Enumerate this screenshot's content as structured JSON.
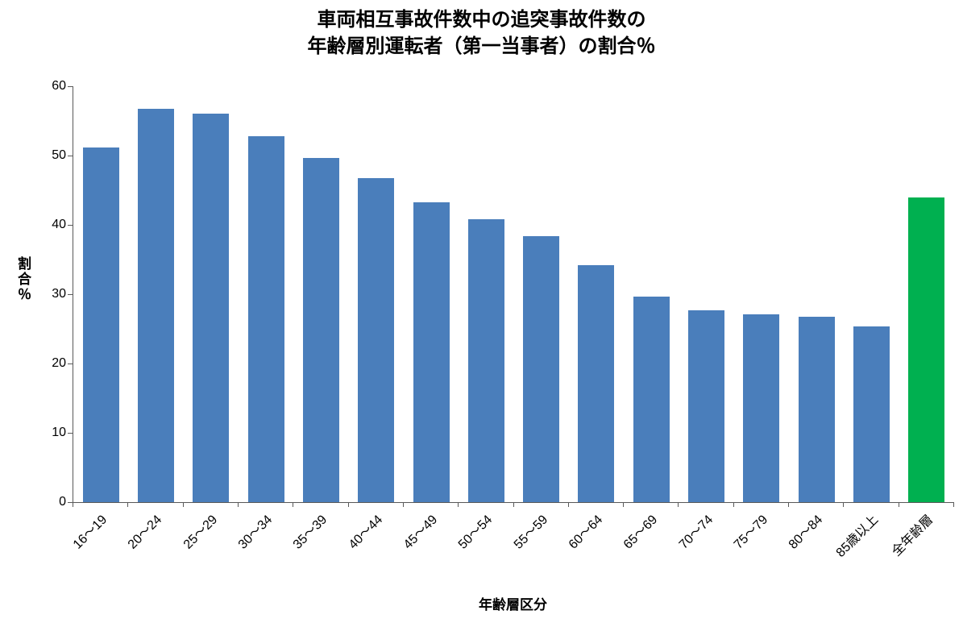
{
  "chart_data": {
    "type": "bar",
    "title": "車両相互事故件数中の追突事故件数の 年齢層別運転者（第一当事者）の割合％",
    "title_line1": "車両相互事故件数中の追突事故件数の",
    "title_line2": "年齢層別運転者（第一当事者）の割合％",
    "xlabel": "年齢層区分",
    "ylabel": "割合％",
    "ylim": [
      0,
      60
    ],
    "yticks": [
      0,
      10,
      20,
      30,
      40,
      50,
      60
    ],
    "grid": false,
    "legend": false,
    "categories": [
      "16～19",
      "20～24",
      "25～29",
      "30～34",
      "35～39",
      "40～44",
      "45～49",
      "50～54",
      "55～59",
      "60～64",
      "65～69",
      "70～74",
      "75～79",
      "80～84",
      "85歳以上",
      "全年齢層"
    ],
    "values": [
      51.2,
      56.7,
      56.1,
      52.8,
      49.7,
      46.7,
      43.3,
      40.8,
      38.4,
      34.2,
      29.6,
      27.7,
      27.1,
      26.7,
      25.3,
      43.9
    ],
    "bar_color": "#4A7EBB",
    "highlight_color": "#00B050",
    "highlight_index": 15,
    "axis_color": "#595959",
    "text_color": "#000000"
  }
}
